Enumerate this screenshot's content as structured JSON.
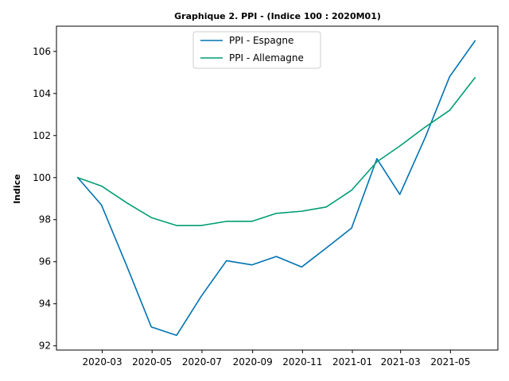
{
  "chart_data": {
    "type": "line",
    "title": "Graphique 2. PPI  - (Indice 100 : 2020M01)",
    "xlabel": "",
    "ylabel": "Indice",
    "ylim": [
      91.8,
      107.2
    ],
    "xlim": [
      "2020-01-05",
      "2021-06-28"
    ],
    "grid": false,
    "legend_position": "top-center",
    "x": [
      "2020-01-31",
      "2020-02-29",
      "2020-03-31",
      "2020-04-30",
      "2020-05-31",
      "2020-06-30",
      "2020-07-31",
      "2020-08-31",
      "2020-09-30",
      "2020-10-31",
      "2020-11-30",
      "2020-12-31",
      "2021-01-31",
      "2021-02-28",
      "2021-03-31",
      "2021-04-30",
      "2021-05-31"
    ],
    "x_ticks": [
      "2020-03",
      "2020-05",
      "2020-07",
      "2020-09",
      "2020-11",
      "2021-01",
      "2021-03",
      "2021-05"
    ],
    "y_ticks": [
      92,
      94,
      96,
      98,
      100,
      102,
      104,
      106
    ],
    "series": [
      {
        "name": "PPI - Espagne",
        "color": "#0072b2",
        "values": [
          100.0,
          98.7,
          95.8,
          92.9,
          92.5,
          94.35,
          96.05,
          95.85,
          96.25,
          95.75,
          96.65,
          97.6,
          100.9,
          99.2,
          101.9,
          104.8,
          106.5
        ]
      },
      {
        "name": "PPI - Allemagne",
        "color": "#009e73",
        "values": [
          100.0,
          99.6,
          98.8,
          98.1,
          97.72,
          97.72,
          97.92,
          97.92,
          98.3,
          98.4,
          98.6,
          99.4,
          100.75,
          101.5,
          102.4,
          103.2,
          104.75
        ]
      }
    ]
  }
}
